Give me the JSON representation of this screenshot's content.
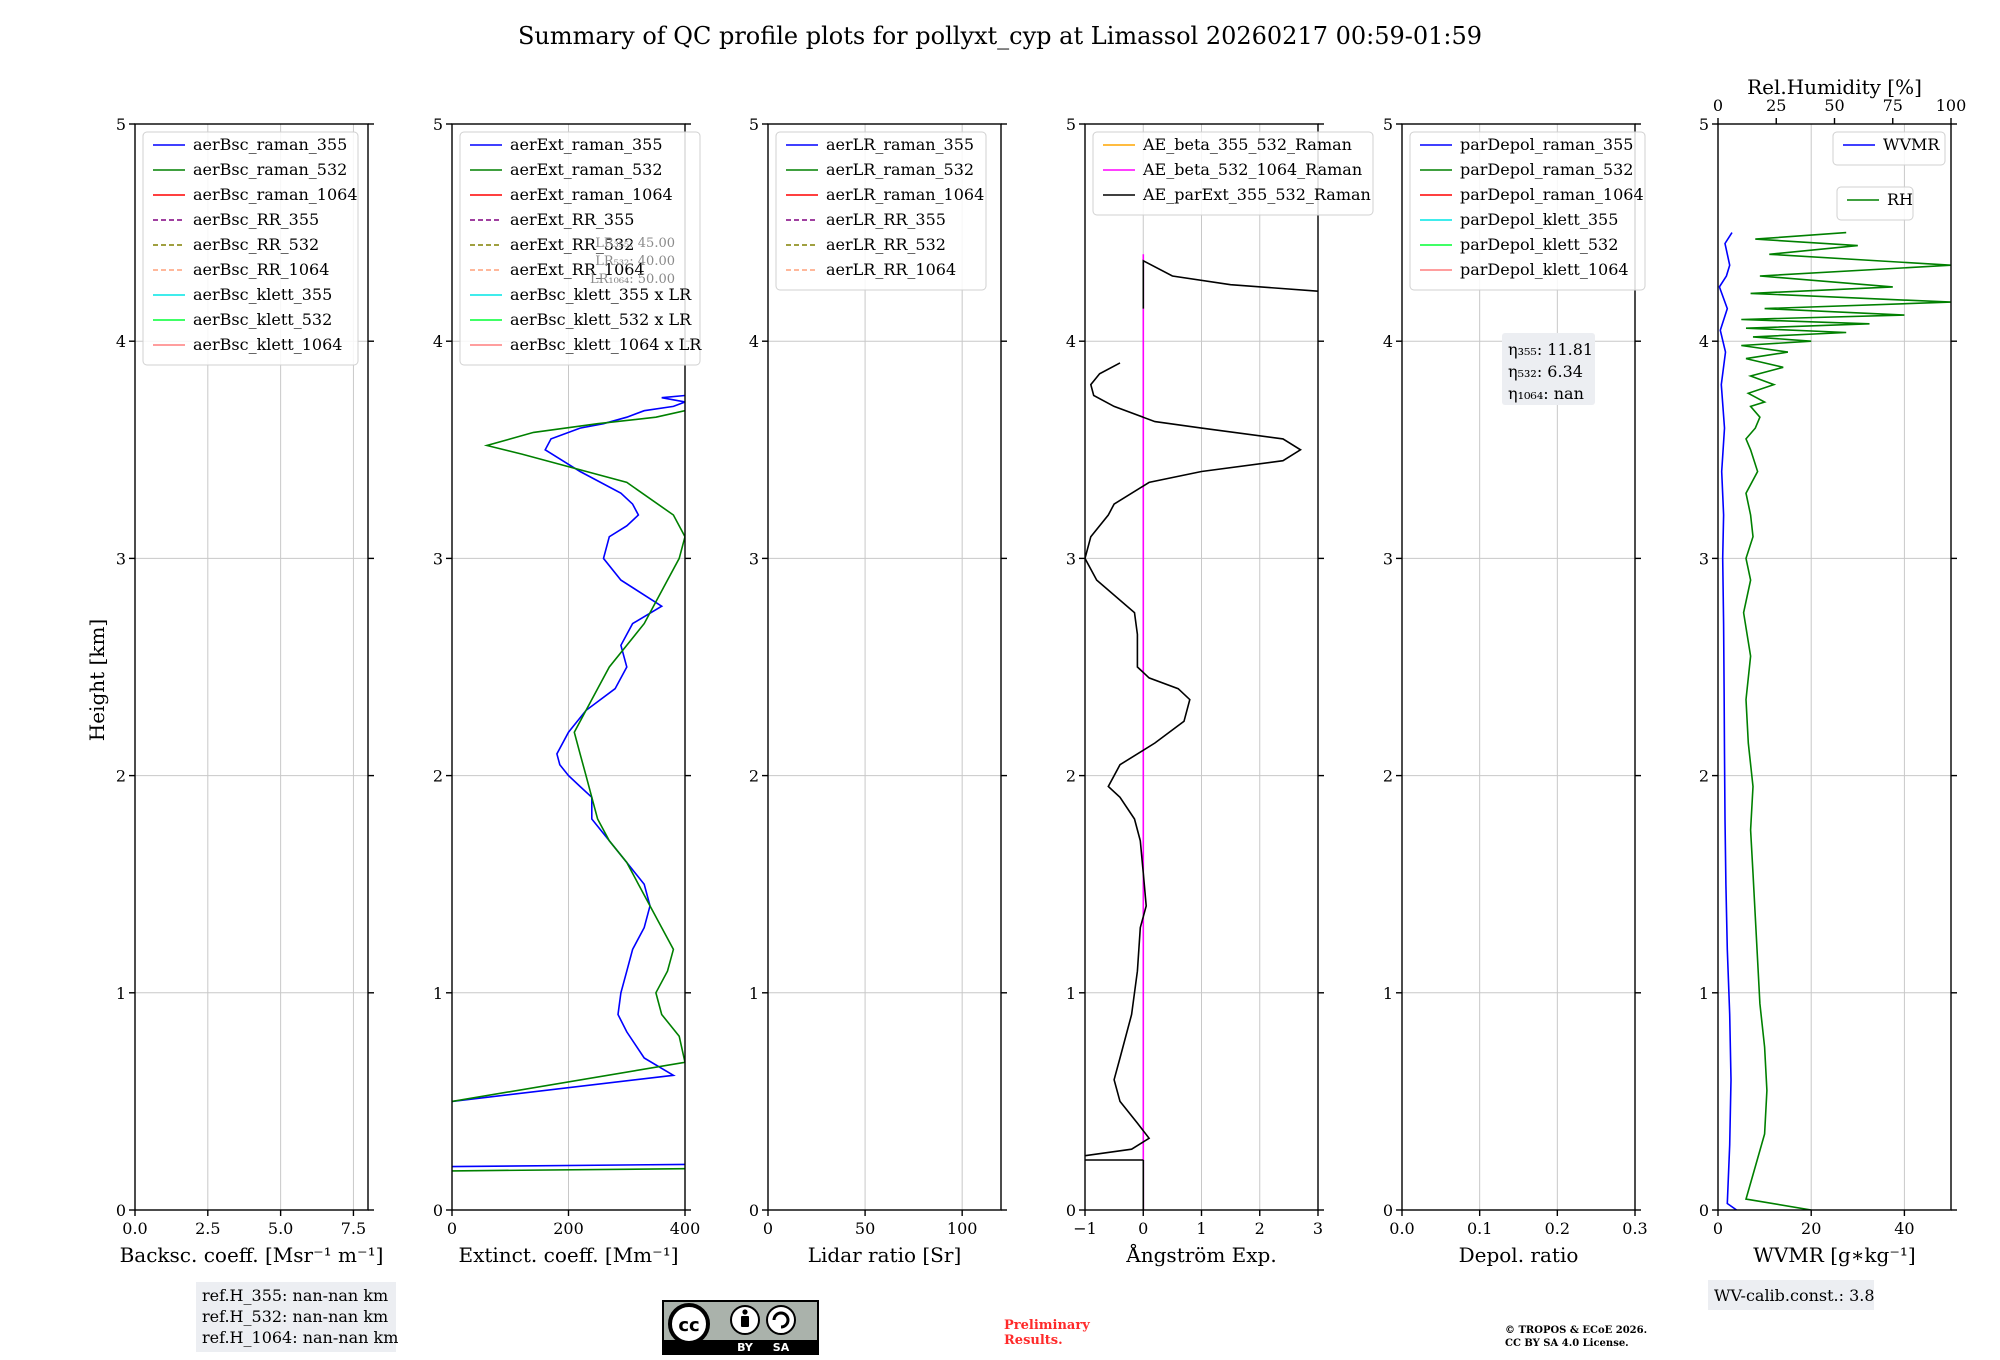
{
  "title": "Summary of QC profile plots for pollyxt_cyp at Limassol 20260217 00:59-01:59",
  "ylabel": "Height [km]",
  "chart_data": [
    {
      "type": "line",
      "panel": "backscatter",
      "xlabel": "Backsc. coeff. [Msr⁻¹ m⁻¹]",
      "xlim": [
        0,
        8
      ],
      "ylim": [
        0,
        5
      ],
      "xticks": [
        0,
        2.5,
        5,
        7.5
      ],
      "xtick_labels": [
        "0.0",
        "2.5",
        "5.0",
        "7.5"
      ],
      "yticks": [
        0,
        1,
        2,
        3,
        4,
        5
      ],
      "ytick_labels": [
        "0",
        "1",
        "2",
        "3",
        "4",
        "5"
      ],
      "legend": [
        {
          "label": "aerBsc_raman_355",
          "color": "#0000ff",
          "dash": false
        },
        {
          "label": "aerBsc_raman_532",
          "color": "#008000",
          "dash": false
        },
        {
          "label": "aerBsc_raman_1064",
          "color": "#ff0000",
          "dash": false
        },
        {
          "label": "aerBsc_RR_355",
          "color": "#800080",
          "dash": true
        },
        {
          "label": "aerBsc_RR_532",
          "color": "#808000",
          "dash": true
        },
        {
          "label": "aerBsc_RR_1064",
          "color": "#ffa07a",
          "dash": true
        },
        {
          "label": "aerBsc_klett_355",
          "color": "#00e5e5",
          "dash": false
        },
        {
          "label": "aerBsc_klett_532",
          "color": "#00ff33",
          "dash": false
        },
        {
          "label": "aerBsc_klett_1064",
          "color": "#ff7f7f",
          "dash": false
        }
      ],
      "series": []
    },
    {
      "type": "line",
      "panel": "extinction",
      "xlabel": "Extinct. coeff. [Mm⁻¹]",
      "xlim": [
        0,
        400
      ],
      "ylim": [
        0,
        5
      ],
      "xticks": [
        0,
        200,
        400
      ],
      "xtick_labels": [
        "0",
        "200",
        "400"
      ],
      "yticks": [
        0,
        1,
        2,
        3,
        4,
        5
      ],
      "ytick_labels": [
        "0",
        "1",
        "2",
        "3",
        "4",
        "5"
      ],
      "legend": [
        {
          "label": "aerExt_raman_355",
          "color": "#0000ff",
          "dash": false
        },
        {
          "label": "aerExt_raman_532",
          "color": "#008000",
          "dash": false
        },
        {
          "label": "aerExt_raman_1064",
          "color": "#ff0000",
          "dash": false
        },
        {
          "label": "aerExt_RR_355",
          "color": "#800080",
          "dash": true
        },
        {
          "label": "aerExt_RR_532",
          "color": "#808000",
          "dash": true
        },
        {
          "label": "aerExt_RR_1064",
          "color": "#ffa07a",
          "dash": true
        },
        {
          "label": "aerBsc_klett_355 x LR",
          "color": "#00e5e5",
          "dash": false
        },
        {
          "label": "aerBsc_klett_532 x LR",
          "color": "#00ff33",
          "dash": false
        },
        {
          "label": "aerBsc_klett_1064 x LR",
          "color": "#ff7f7f",
          "dash": false
        }
      ],
      "lr_notes": [
        "LR₃₅₅: 45.00",
        "LR₅₃₂: 40.00",
        "LR₁₀₆₄: 50.00"
      ],
      "series": [
        {
          "name": "aerExt_raman_355",
          "color": "#0000ff",
          "x": [
            0,
            400,
            null,
            0,
            380,
            330,
            300,
            285,
            290,
            300,
            310,
            330,
            340,
            330,
            300,
            270,
            240,
            240,
            220,
            200,
            185,
            180,
            200,
            230,
            280,
            300,
            290,
            310,
            360,
            290,
            260,
            270,
            300,
            320,
            310,
            290,
            220,
            160,
            170,
            220,
            260,
            300,
            330,
            380,
            400,
            360,
            400
          ],
          "y": [
            0.2,
            0.21,
            null,
            0.5,
            0.62,
            0.7,
            0.82,
            0.9,
            1.0,
            1.1,
            1.2,
            1.3,
            1.4,
            1.5,
            1.6,
            1.7,
            1.8,
            1.9,
            1.95,
            2.0,
            2.05,
            2.1,
            2.2,
            2.3,
            2.4,
            2.5,
            2.6,
            2.7,
            2.78,
            2.9,
            3.0,
            3.1,
            3.15,
            3.2,
            3.25,
            3.3,
            3.4,
            3.5,
            3.55,
            3.6,
            3.62,
            3.65,
            3.68,
            3.7,
            3.72,
            3.74,
            3.75
          ]
        },
        {
          "name": "aerExt_raman_532",
          "color": "#008000",
          "x": [
            0,
            400,
            null,
            0,
            400,
            390,
            360,
            350,
            370,
            380,
            360,
            340,
            320,
            300,
            270,
            250,
            240,
            230,
            220,
            210,
            230,
            250,
            270,
            300,
            330,
            350,
            370,
            390,
            400,
            380,
            300,
            120,
            60,
            140,
            250,
            350,
            400
          ],
          "y": [
            0.18,
            0.19,
            null,
            0.5,
            0.68,
            0.8,
            0.9,
            1.0,
            1.1,
            1.2,
            1.3,
            1.4,
            1.5,
            1.6,
            1.7,
            1.8,
            1.9,
            2.0,
            2.1,
            2.2,
            2.3,
            2.4,
            2.5,
            2.6,
            2.7,
            2.8,
            2.9,
            3.0,
            3.1,
            3.2,
            3.35,
            3.48,
            3.52,
            3.58,
            3.62,
            3.65,
            3.68
          ]
        }
      ]
    },
    {
      "type": "line",
      "panel": "lidar_ratio",
      "xlabel": "Lidar ratio [Sr]",
      "xlim": [
        0,
        120
      ],
      "ylim": [
        0,
        5
      ],
      "xticks": [
        0,
        50,
        100
      ],
      "xtick_labels": [
        "0",
        "50",
        "100"
      ],
      "yticks": [
        0,
        1,
        2,
        3,
        4,
        5
      ],
      "ytick_labels": [
        "0",
        "1",
        "2",
        "3",
        "4",
        "5"
      ],
      "legend": [
        {
          "label": "aerLR_raman_355",
          "color": "#0000ff",
          "dash": false
        },
        {
          "label": "aerLR_raman_532",
          "color": "#008000",
          "dash": false
        },
        {
          "label": "aerLR_raman_1064",
          "color": "#ff0000",
          "dash": false
        },
        {
          "label": "aerLR_RR_355",
          "color": "#800080",
          "dash": true
        },
        {
          "label": "aerLR_RR_532",
          "color": "#808000",
          "dash": true
        },
        {
          "label": "aerLR_RR_1064",
          "color": "#ffa07a",
          "dash": true
        }
      ],
      "series": []
    },
    {
      "type": "line",
      "panel": "angstrom",
      "xlabel": "Ångström Exp.",
      "xlim": [
        -1,
        3
      ],
      "ylim": [
        0,
        5
      ],
      "xticks": [
        -1,
        0,
        1,
        2,
        3
      ],
      "xtick_labels": [
        "−1",
        "0",
        "1",
        "2",
        "3"
      ],
      "yticks": [
        0,
        1,
        2,
        3,
        4,
        5
      ],
      "ytick_labels": [
        "0",
        "1",
        "2",
        "3",
        "4",
        "5"
      ],
      "legend": [
        {
          "label": "AE_beta_355_532_Raman",
          "color": "#ffa500",
          "dash": false
        },
        {
          "label": "AE_beta_532_1064_Raman",
          "color": "#ff00ff",
          "dash": false
        },
        {
          "label": "AE_parExt_355_532_Raman",
          "color": "#000000",
          "dash": false
        }
      ],
      "series": [
        {
          "name": "AE_beta_532_1064_Raman",
          "color": "#ff00ff",
          "x": [
            0,
            0
          ],
          "y": [
            0.0,
            4.4
          ]
        },
        {
          "name": "AE_parExt_355_532_Raman",
          "color": "#000000",
          "x": [
            0,
            0,
            null,
            0,
            -1.0,
            null,
            -1.0,
            -0.2,
            0.1,
            -0.1,
            -0.4,
            -0.5,
            -0.4,
            -0.2,
            -0.1,
            -0.05,
            0.05,
            0.0,
            -0.05,
            -0.15,
            -0.4,
            -0.6,
            -0.4,
            0.2,
            0.7,
            0.8,
            0.6,
            0.1,
            -0.1,
            -0.1,
            -0.15,
            -0.8,
            -1.0,
            -0.9,
            -0.6,
            -0.5,
            0.1,
            1.0,
            2.4,
            2.7,
            2.4,
            1.0,
            0.2,
            -0.5,
            -0.85,
            -0.9,
            -0.75,
            -0.4,
            null,
            0,
            0,
            0.5,
            1.5,
            3.0
          ],
          "y": [
            0.0,
            0.23,
            null,
            0.23,
            0.23,
            null,
            0.25,
            0.28,
            0.33,
            0.4,
            0.5,
            0.6,
            0.7,
            0.9,
            1.1,
            1.3,
            1.4,
            1.55,
            1.7,
            1.8,
            1.9,
            1.95,
            2.05,
            2.15,
            2.25,
            2.35,
            2.4,
            2.45,
            2.5,
            2.65,
            2.75,
            2.9,
            3.0,
            3.1,
            3.2,
            3.25,
            3.35,
            3.4,
            3.45,
            3.5,
            3.55,
            3.6,
            3.63,
            3.7,
            3.75,
            3.8,
            3.85,
            3.9,
            null,
            4.15,
            4.37,
            4.3,
            4.26,
            4.23
          ]
        }
      ]
    },
    {
      "type": "line",
      "panel": "depolarization",
      "xlabel": "Depol. ratio",
      "xlim": [
        0,
        0.3
      ],
      "ylim": [
        0,
        5
      ],
      "xticks": [
        0,
        0.1,
        0.2,
        0.3
      ],
      "xtick_labels": [
        "0.0",
        "0.1",
        "0.2",
        "0.3"
      ],
      "yticks": [
        0,
        1,
        2,
        3,
        4,
        5
      ],
      "ytick_labels": [
        "0",
        "1",
        "2",
        "3",
        "4",
        "5"
      ],
      "legend": [
        {
          "label": "parDepol_raman_355",
          "color": "#0000ff",
          "dash": false
        },
        {
          "label": "parDepol_raman_532",
          "color": "#008000",
          "dash": false
        },
        {
          "label": "parDepol_raman_1064",
          "color": "#ff0000",
          "dash": false
        },
        {
          "label": "parDepol_klett_355",
          "color": "#00e5e5",
          "dash": false
        },
        {
          "label": "parDepol_klett_532",
          "color": "#00ff33",
          "dash": false
        },
        {
          "label": "parDepol_klett_1064",
          "color": "#ff7f7f",
          "dash": false
        }
      ],
      "eta_box": [
        "η₃₅₅: 11.81",
        "η₅₃₂: 6.34",
        "η₁₀₆₄: nan"
      ],
      "series": []
    },
    {
      "type": "line",
      "panel": "wvmr_rh",
      "xlabel": "WVMR [g∗kg⁻¹]",
      "xlim": [
        0,
        50
      ],
      "ylim": [
        0,
        5
      ],
      "xticks": [
        0,
        20,
        40
      ],
      "xtick_labels": [
        "0",
        "20",
        "40"
      ],
      "top_xlabel": "Rel.Humidity [%]",
      "top_xlim": [
        0,
        100
      ],
      "top_xticks": [
        0,
        25,
        50,
        75,
        100
      ],
      "top_xtick_labels": [
        "0",
        "25",
        "50",
        "75",
        "100"
      ],
      "yticks": [
        0,
        1,
        2,
        3,
        4,
        5
      ],
      "ytick_labels": [
        "0",
        "1",
        "2",
        "3",
        "4",
        "5"
      ],
      "legend_wvmr": {
        "label": "WVMR",
        "color": "#0000ff"
      },
      "legend_rh": {
        "label": "RH",
        "color": "#008000"
      },
      "series": [
        {
          "name": "WVMR",
          "color": "#0000ff",
          "axis": "bottom",
          "x": [
            4,
            2,
            2.5,
            2.8,
            2.5,
            2.0,
            1.7,
            1.5,
            1.4,
            1.3,
            1.2,
            1.0,
            1.2,
            0.8,
            1.4,
            0.7,
            1.6,
            0.5,
            2.0,
            0.3,
            1.8,
            2.5,
            1.5,
            3.0
          ],
          "y": [
            0.0,
            0.03,
            0.3,
            0.6,
            0.9,
            1.2,
            1.5,
            1.8,
            2.1,
            2.4,
            2.7,
            3.0,
            3.2,
            3.4,
            3.6,
            3.8,
            3.95,
            4.05,
            4.15,
            4.25,
            4.3,
            4.35,
            4.45,
            4.5
          ]
        },
        {
          "name": "RH",
          "color": "#008000",
          "axis": "top",
          "x": [
            40,
            12,
            16,
            20,
            21,
            20,
            18,
            17,
            16,
            15,
            14,
            15,
            13,
            12,
            14,
            11,
            14,
            12,
            15,
            14,
            12,
            17,
            14,
            12,
            16,
            18,
            14,
            20,
            13,
            24,
            14,
            28,
            12,
            30,
            10,
            40,
            15,
            55,
            12,
            65,
            10,
            80,
            20,
            100,
            14,
            75,
            18,
            100,
            22,
            60,
            16,
            55
          ],
          "y": [
            0.0,
            0.05,
            0.2,
            0.35,
            0.55,
            0.75,
            0.95,
            1.15,
            1.35,
            1.55,
            1.75,
            1.95,
            2.15,
            2.35,
            2.55,
            2.75,
            2.9,
            3.0,
            3.1,
            3.2,
            3.3,
            3.4,
            3.5,
            3.55,
            3.6,
            3.65,
            3.7,
            3.72,
            3.76,
            3.8,
            3.84,
            3.88,
            3.92,
            3.95,
            3.98,
            4.0,
            4.02,
            4.04,
            4.06,
            4.08,
            4.1,
            4.12,
            4.15,
            4.18,
            4.22,
            4.25,
            4.3,
            4.35,
            4.4,
            4.44,
            4.47,
            4.5
          ]
        }
      ]
    }
  ],
  "notes": {
    "refH": [
      "ref.H_355: nan-nan km",
      "ref.H_532: nan-nan km",
      "ref.H_1064: nan-nan km"
    ],
    "wv_calib": "WV-calib.const.: 3.8",
    "preliminary": [
      "Preliminary",
      "Results."
    ],
    "copyright": [
      "© TROPOS & ECoE 2026.",
      "CC BY SA 4.0 License."
    ],
    "license_badge": [
      "BY",
      "SA"
    ]
  }
}
